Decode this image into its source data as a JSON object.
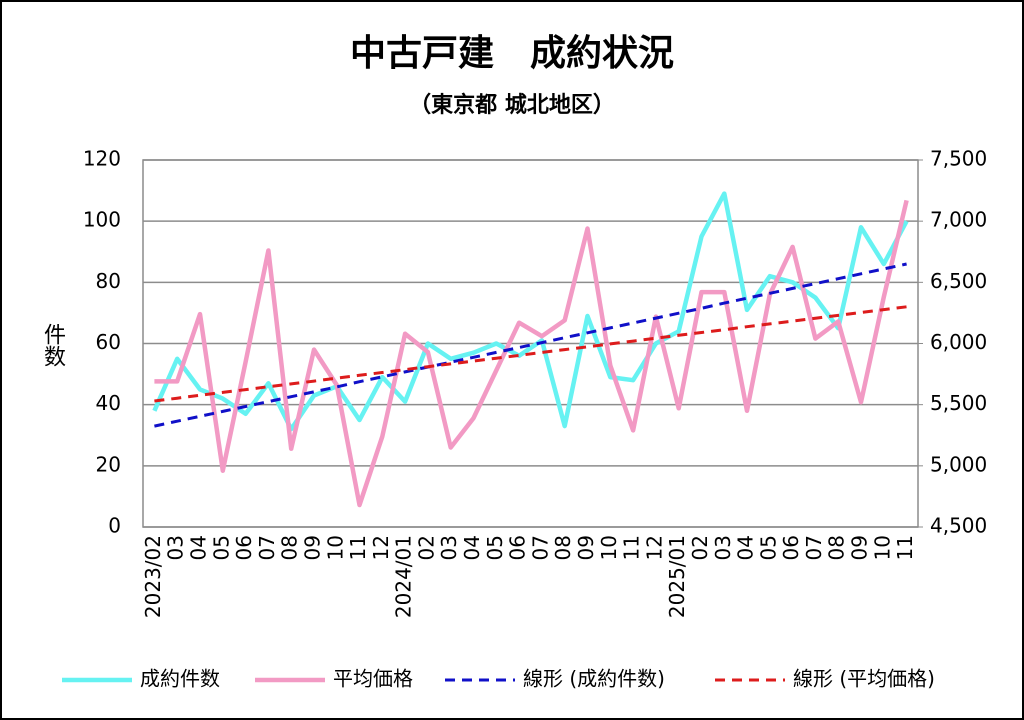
{
  "chart_data": {
    "type": "line",
    "title": "中古戸建　成約状況",
    "subtitle": "（東京都 城北地区）",
    "y_label": "件数",
    "categories": [
      "2023/02",
      "03",
      "04",
      "05",
      "06",
      "07",
      "08",
      "09",
      "10",
      "11",
      "12",
      "2024/01",
      "02",
      "03",
      "04",
      "05",
      "06",
      "07",
      "08",
      "09",
      "10",
      "11",
      "12",
      "2025/01",
      "02",
      "03",
      "04",
      "05",
      "06",
      "07",
      "08",
      "09",
      "10",
      "11"
    ],
    "ylim": [
      0,
      120
    ],
    "yticks": [
      0,
      20,
      40,
      60,
      80,
      100,
      120
    ],
    "y2lim": [
      4500,
      7500
    ],
    "y2ticks": [
      {
        "value": 4500,
        "label": "4,500"
      },
      {
        "value": 5000,
        "label": "5,000"
      },
      {
        "value": 5500,
        "label": "5,500"
      },
      {
        "value": 6000,
        "label": "6,000"
      },
      {
        "value": 6500,
        "label": "6,500"
      },
      {
        "value": 7000,
        "label": "7,000"
      },
      {
        "value": 7500,
        "label": "7,500"
      }
    ],
    "grid": true,
    "legend": "bottom",
    "series": [
      {
        "name": "成約件数",
        "color": "#66f2f2",
        "values": [
          38,
          55,
          45,
          42,
          37,
          47,
          32,
          43,
          46,
          35,
          49,
          41,
          60,
          55,
          57,
          60,
          56,
          61,
          33,
          69,
          49,
          48,
          60,
          64,
          95,
          109,
          71,
          82,
          80,
          75,
          65,
          98,
          86,
          100
        ]
      },
      {
        "name": "平均価格",
        "color": "#f29ac4",
        "axis": "y2",
        "values": [
          5690,
          5690,
          6240,
          4960,
          5850,
          6760,
          5140,
          5950,
          5660,
          4680,
          5240,
          6080,
          5930,
          5150,
          5390,
          5780,
          6170,
          6060,
          6190,
          6940,
          5820,
          5290,
          6220,
          5470,
          6420,
          6420,
          5450,
          6400,
          6790,
          6040,
          6180,
          5520,
          6380,
          7170
        ]
      },
      {
        "name": "線形 (成約件数)",
        "color": "#1010c8",
        "dashed": true,
        "values": [
          33,
          34.6,
          36.2,
          37.8,
          39.4,
          41.0,
          42.6,
          44.2,
          45.8,
          47.5,
          49.1,
          50.7,
          52.3,
          53.9,
          55.5,
          57.1,
          58.7,
          60.3,
          61.9,
          63.5,
          65.1,
          66.7,
          68.3,
          69.9,
          71.5,
          73.2,
          74.8,
          76.4,
          78.0,
          79.6,
          81.2,
          82.8,
          84.4,
          86.0
        ]
      },
      {
        "name": "線形 (平均価格)",
        "color": "#dd1c1c",
        "dashed": true,
        "axis": "y2",
        "values": [
          5530,
          5553,
          5577,
          5600,
          5623,
          5647,
          5670,
          5693,
          5717,
          5740,
          5763,
          5787,
          5810,
          5833,
          5857,
          5880,
          5903,
          5927,
          5950,
          5973,
          5997,
          6020,
          6043,
          6067,
          6090,
          6113,
          6137,
          6160,
          6183,
          6207,
          6230,
          6253,
          6277,
          6300
        ]
      }
    ]
  }
}
